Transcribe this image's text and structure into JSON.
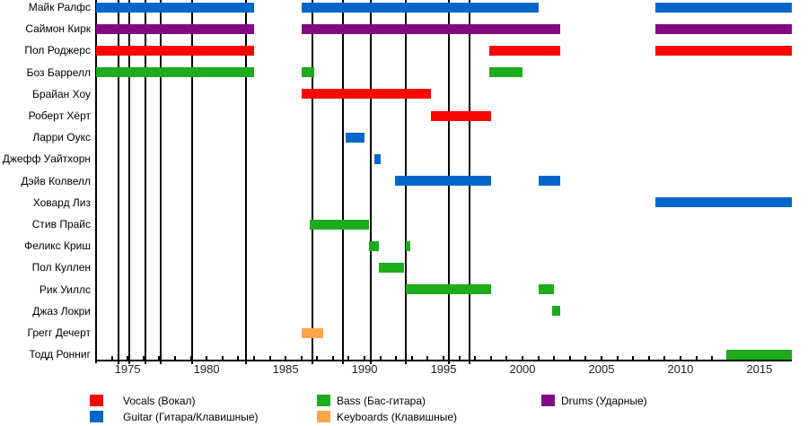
{
  "chart_data": {
    "type": "bar",
    "subtype": "band-members-timeline",
    "title": "",
    "xlabel": "",
    "ylabel": "",
    "x_domain": [
      1973,
      2017.05
    ],
    "x_tick_labels": [
      "1975",
      "1980",
      "1985",
      "1990",
      "1995",
      "2000",
      "2005",
      "2010",
      "2015"
    ],
    "x_minor_tick_step_years": 1,
    "grid": "vertical-event-lines",
    "legend_position": "bottom",
    "roles": {
      "vocals": {
        "color": "#FA0404"
      },
      "guitar": {
        "color": "#0066CC"
      },
      "bass": {
        "color": "#1CAC1C"
      },
      "keyboards": {
        "color": "#FFA64D"
      },
      "drums": {
        "color": "#830883"
      }
    },
    "members": [
      {
        "name": "Майк Ралфс",
        "role": "guitar",
        "segments": [
          [
            1973,
            1983
          ],
          [
            1986,
            2001
          ],
          [
            2008.4,
            2017.05
          ]
        ]
      },
      {
        "name": "Саймон Кирк",
        "role": "drums",
        "segments": [
          [
            1973,
            1983
          ],
          [
            1986,
            2002.4
          ],
          [
            2008.4,
            2017.05
          ]
        ]
      },
      {
        "name": "Пол Роджерс",
        "role": "vocals",
        "segments": [
          [
            1973,
            1983
          ],
          [
            1997.9,
            2002.4
          ],
          [
            2008.4,
            2017.05
          ]
        ]
      },
      {
        "name": "Боз Баррелл",
        "role": "bass",
        "segments": [
          [
            1973,
            1983
          ],
          [
            1986,
            1986.8
          ],
          [
            1997.9,
            2000
          ]
        ]
      },
      {
        "name": "Брайан Хоу",
        "role": "vocals",
        "segments": [
          [
            1986,
            1994.2
          ]
        ]
      },
      {
        "name": "Роберт Хёрт",
        "role": "vocals",
        "segments": [
          [
            1994.2,
            1998
          ]
        ]
      },
      {
        "name": "Ларри Оукс",
        "role": "guitar",
        "segments": [
          [
            1988.8,
            1990
          ]
        ]
      },
      {
        "name": "Джефф Уайтхорн",
        "role": "guitar",
        "segments": [
          [
            1990.6,
            1991
          ]
        ]
      },
      {
        "name": "Дэйв Колвелл",
        "role": "guitar",
        "segments": [
          [
            1991.9,
            1998
          ],
          [
            2001,
            2002.4
          ]
        ]
      },
      {
        "name": "Ховард Лиз",
        "role": "guitar",
        "segments": [
          [
            2008.4,
            2017.05
          ]
        ]
      },
      {
        "name": "Стив Прайс",
        "role": "bass",
        "segments": [
          [
            1986.5,
            1990.3
          ]
        ]
      },
      {
        "name": "Феликс Криш",
        "role": "bass",
        "segments": [
          [
            1990.3,
            1990.9
          ],
          [
            1992.6,
            1992.9
          ]
        ]
      },
      {
        "name": "Пол Куллен",
        "role": "bass",
        "segments": [
          [
            1990.9,
            1992.5
          ]
        ]
      },
      {
        "name": "Рик Уиллс",
        "role": "bass",
        "segments": [
          [
            1992.6,
            1998
          ],
          [
            2001,
            2002
          ]
        ]
      },
      {
        "name": "Джаз Локри",
        "role": "bass",
        "segments": [
          [
            2001.9,
            2002.4
          ]
        ]
      },
      {
        "name": "Грегг Дечерт",
        "role": "keyboards",
        "segments": [
          [
            1986,
            1987.4
          ]
        ]
      },
      {
        "name": "Тодд Ронниг",
        "role": "bass",
        "segments": [
          [
            2012.9,
            2017.05
          ]
        ]
      }
    ],
    "event_lines_years": [
      1974.4,
      1975.1,
      1976.1,
      1977.1,
      1979.1,
      1982.5,
      1986.7,
      1988.65,
      1990.4,
      1992.6,
      1995.35,
      1996.65
    ]
  },
  "legend": {
    "items": [
      {
        "label": "Vocals (Вокал)",
        "role": "vocals"
      },
      {
        "label": "Guitar (Гитара/Клавишные)",
        "role": "guitar"
      },
      {
        "label": "Bass (Бас-гитара)",
        "role": "bass"
      },
      {
        "label": "Keyboards (Клавишные)",
        "role": "keyboards"
      },
      {
        "label": "Drums (Ударные)",
        "role": "drums"
      }
    ]
  }
}
